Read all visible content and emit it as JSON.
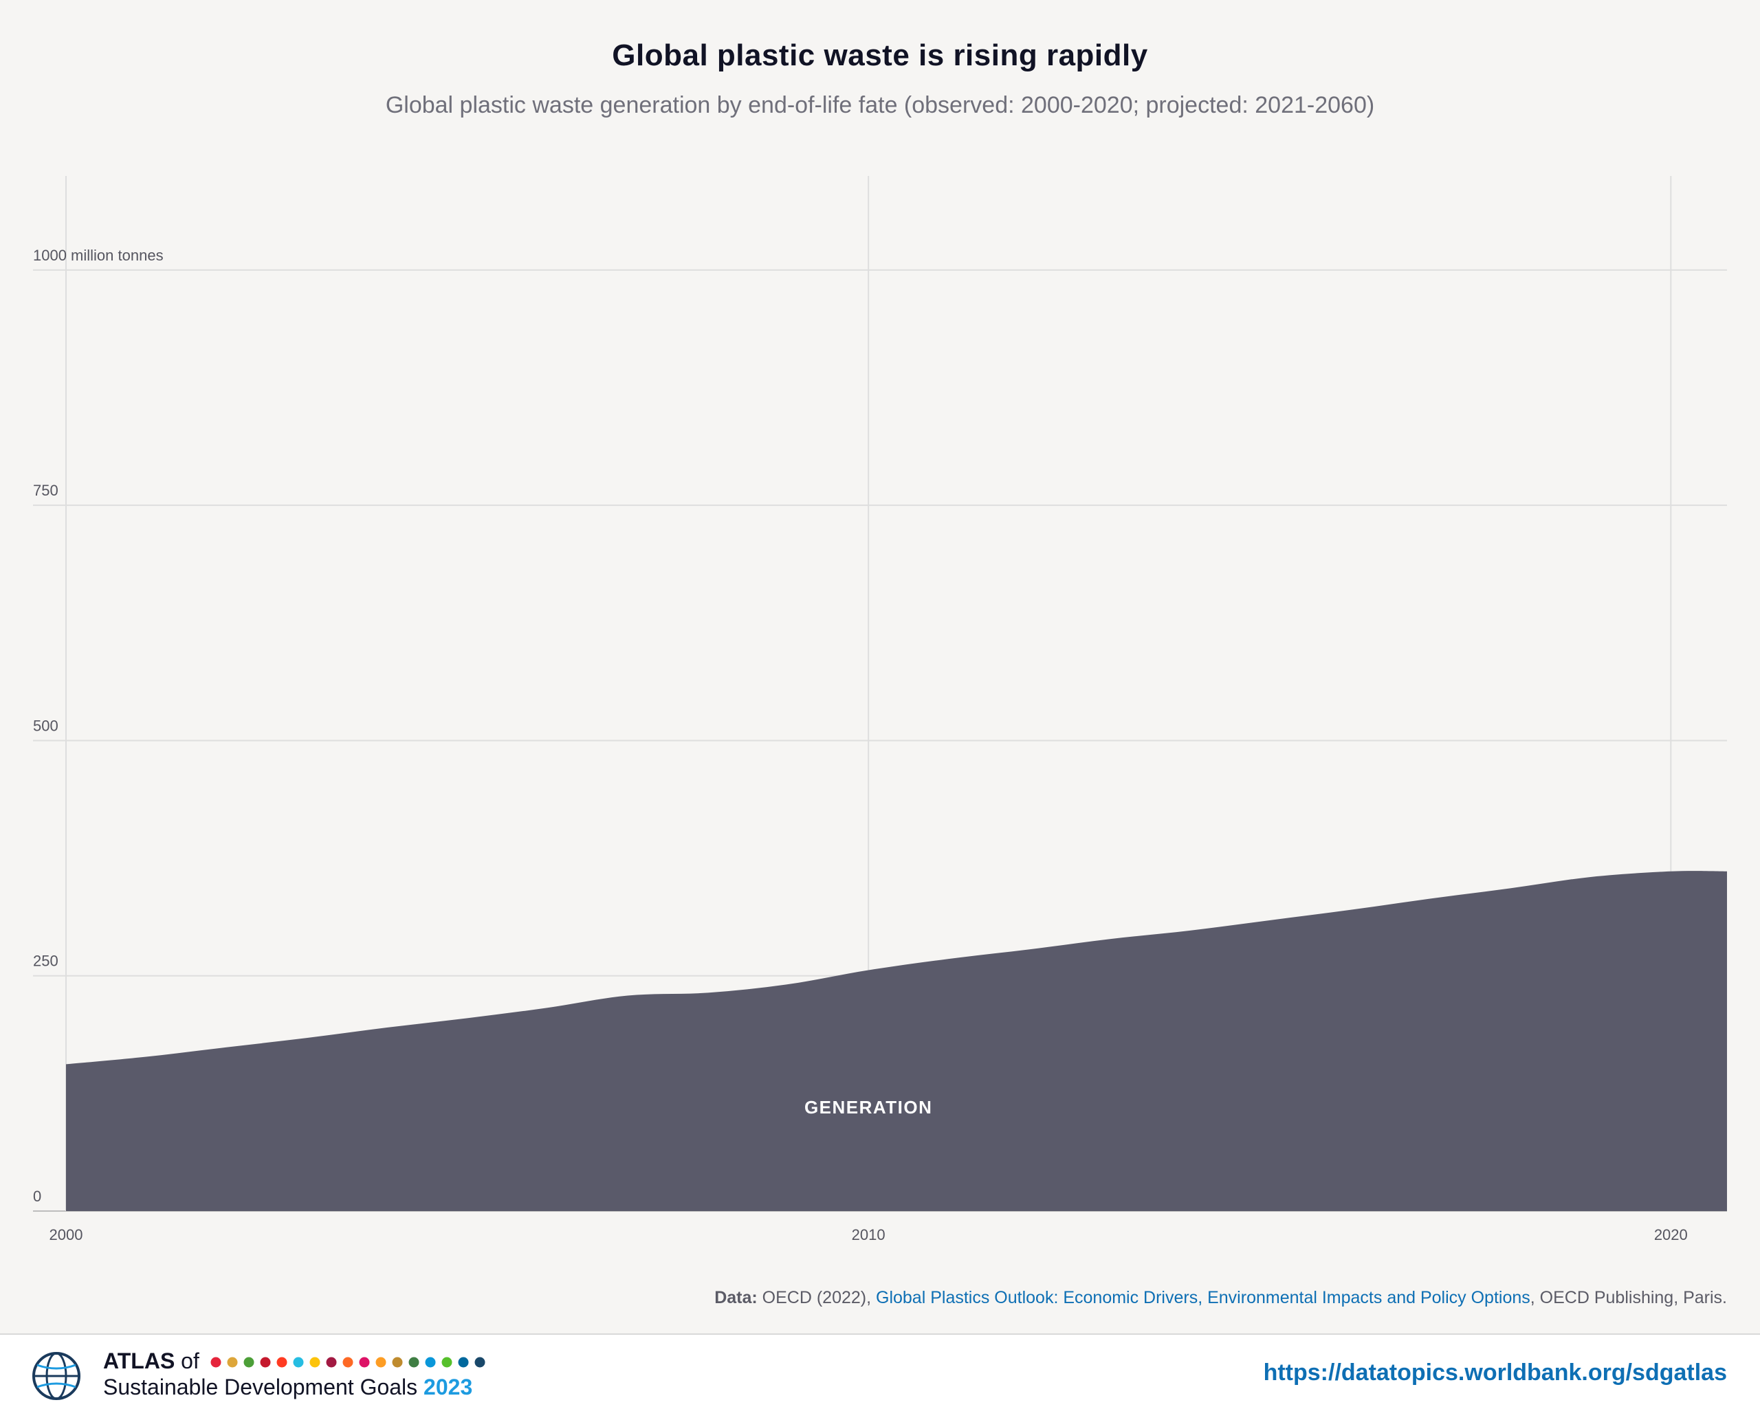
{
  "header": {
    "title": "Global plastic waste is rising rapidly",
    "subtitle": "Global plastic waste generation by end-of-life fate (observed: 2000-2020; projected: 2021-2060)"
  },
  "chart_data": {
    "type": "area",
    "x": [
      2000,
      2001,
      2002,
      2003,
      2004,
      2005,
      2006,
      2007,
      2008,
      2009,
      2010,
      2011,
      2012,
      2013,
      2014,
      2015,
      2016,
      2017,
      2018,
      2019,
      2020
    ],
    "series": [
      {
        "name": "GENERATION",
        "color": "#5a5a6a",
        "values": [
          156,
          164,
          174,
          184,
          195,
          205,
          216,
          229,
          232,
          241,
          256,
          268,
          278,
          289,
          298,
          309,
          320,
          332,
          343,
          355,
          361
        ]
      }
    ],
    "xticks": [
      "2000",
      "2010",
      "2020"
    ],
    "yticks": [
      "0",
      "250",
      "500",
      "750",
      "1000 million tonnes"
    ],
    "ylim": [
      0,
      1100
    ],
    "xlim": [
      2000,
      2020.7
    ],
    "grid": true,
    "series_label": "GENERATION"
  },
  "source": {
    "prefix": "Data:",
    "publisher": " OECD (2022), ",
    "link_text": "Global Plastics Outlook: Economic Drivers, Environmental Impacts and Policy Options",
    "suffix": ", OECD Publishing, Paris."
  },
  "footer": {
    "brand_atlas": "ATLAS",
    "brand_of": " of",
    "brand_line2": "Sustainable Development Goals ",
    "brand_year": "2023",
    "url": "https://datatopics.worldbank.org/sdgatlas",
    "globe_icon": "world-bank-globe-icon",
    "sdg_colors": [
      "#e5243b",
      "#dda63a",
      "#4c9f38",
      "#c5192d",
      "#ff3a21",
      "#26bde2",
      "#fcc30b",
      "#a21942",
      "#fd6925",
      "#dd1367",
      "#fd9d24",
      "#bf8b2e",
      "#3f7e44",
      "#0a97d9",
      "#56c02b",
      "#00689d",
      "#19486a"
    ]
  }
}
